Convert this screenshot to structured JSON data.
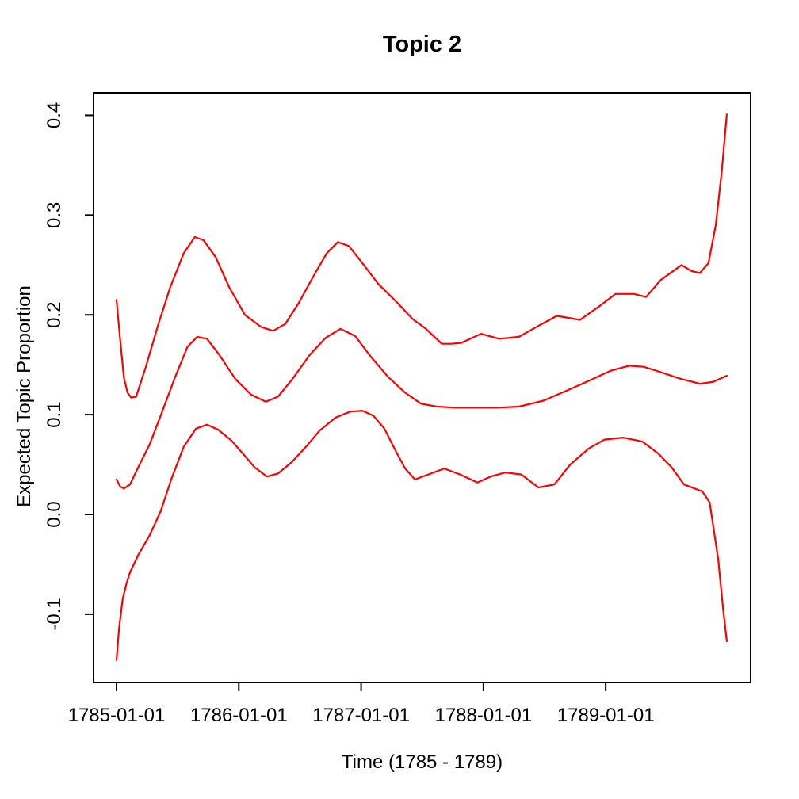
{
  "title": "Topic 2",
  "chart_data": {
    "type": "line",
    "title": "Topic 2",
    "xlabel": "Time (1785 - 1789)",
    "ylabel": "Expected Topic Proportion",
    "x_unit": "decimal_year",
    "xlim": [
      1784.812,
      1790.185
    ],
    "ylim": [
      -0.1684,
      0.4226
    ],
    "grid": false,
    "legend": "none",
    "background_color": "#FFFFFF",
    "axis_color": "#000000",
    "line_color": "#FF0000",
    "x_ticks": [
      {
        "value": 1785,
        "label": "1785-01-01"
      },
      {
        "value": 1786,
        "label": "1786-01-01"
      },
      {
        "value": 1787,
        "label": "1787-01-01"
      },
      {
        "value": 1788,
        "label": "1788-01-01"
      },
      {
        "value": 1789,
        "label": "1789-01-01"
      }
    ],
    "y_ticks": [
      {
        "value": -0.1,
        "label": "-0.1"
      },
      {
        "value": 0.0,
        "label": "0.0"
      },
      {
        "value": 0.1,
        "label": "0.1"
      },
      {
        "value": 0.2,
        "label": "0.2"
      },
      {
        "value": 0.3,
        "label": "0.3"
      },
      {
        "value": 0.4,
        "label": "0.4"
      }
    ],
    "series": [
      {
        "name": "upper_ci",
        "x": [
          1785.0,
          1785.03,
          1785.06,
          1785.09,
          1785.12,
          1785.16,
          1785.24,
          1785.34,
          1785.44,
          1785.55,
          1785.64,
          1785.71,
          1785.81,
          1785.92,
          1786.05,
          1786.18,
          1786.28,
          1786.38,
          1786.49,
          1786.62,
          1786.72,
          1786.81,
          1786.9,
          1787.01,
          1787.14,
          1787.29,
          1787.42,
          1787.53,
          1787.66,
          1787.74,
          1787.82,
          1787.98,
          1788.13,
          1788.29,
          1788.45,
          1788.6,
          1788.79,
          1788.94,
          1789.08,
          1789.23,
          1789.33,
          1789.45,
          1789.62,
          1789.7,
          1789.77,
          1789.84,
          1789.9,
          1789.95,
          1789.99
        ],
        "y": [
          0.215,
          0.175,
          0.137,
          0.122,
          0.117,
          0.118,
          0.148,
          0.19,
          0.228,
          0.262,
          0.278,
          0.275,
          0.258,
          0.228,
          0.2,
          0.188,
          0.184,
          0.191,
          0.212,
          0.241,
          0.262,
          0.273,
          0.269,
          0.252,
          0.231,
          0.213,
          0.196,
          0.186,
          0.171,
          0.171,
          0.172,
          0.181,
          0.176,
          0.178,
          0.189,
          0.199,
          0.195,
          0.208,
          0.221,
          0.221,
          0.218,
          0.235,
          0.25,
          0.244,
          0.242,
          0.252,
          0.29,
          0.345,
          0.401
        ]
      },
      {
        "name": "mean",
        "x": [
          1785.0,
          1785.03,
          1785.06,
          1785.11,
          1785.18,
          1785.27,
          1785.37,
          1785.48,
          1785.58,
          1785.66,
          1785.74,
          1785.84,
          1785.97,
          1786.1,
          1786.22,
          1786.32,
          1786.44,
          1786.58,
          1786.71,
          1786.83,
          1786.95,
          1787.08,
          1787.22,
          1787.36,
          1787.49,
          1787.62,
          1787.77,
          1787.94,
          1788.12,
          1788.29,
          1788.49,
          1788.68,
          1788.88,
          1789.04,
          1789.19,
          1789.31,
          1789.44,
          1789.61,
          1789.77,
          1789.88,
          1789.99
        ],
        "y": [
          0.035,
          0.028,
          0.026,
          0.03,
          0.048,
          0.07,
          0.102,
          0.138,
          0.168,
          0.178,
          0.176,
          0.16,
          0.136,
          0.12,
          0.113,
          0.118,
          0.136,
          0.16,
          0.177,
          0.186,
          0.179,
          0.158,
          0.138,
          0.122,
          0.111,
          0.108,
          0.107,
          0.107,
          0.107,
          0.108,
          0.114,
          0.124,
          0.135,
          0.144,
          0.149,
          0.148,
          0.143,
          0.136,
          0.131,
          0.133,
          0.139
        ]
      },
      {
        "name": "lower_ci",
        "x": [
          1785.0,
          1785.02,
          1785.05,
          1785.08,
          1785.11,
          1785.18,
          1785.27,
          1785.36,
          1785.45,
          1785.55,
          1785.65,
          1785.74,
          1785.83,
          1785.94,
          1786.04,
          1786.13,
          1786.23,
          1786.32,
          1786.43,
          1786.55,
          1786.66,
          1786.79,
          1786.91,
          1787.01,
          1787.1,
          1787.19,
          1787.29,
          1787.36,
          1787.44,
          1787.55,
          1787.68,
          1787.81,
          1787.95,
          1788.06,
          1788.18,
          1788.31,
          1788.45,
          1788.58,
          1788.71,
          1788.86,
          1788.99,
          1789.14,
          1789.3,
          1789.43,
          1789.54,
          1789.64,
          1789.79,
          1789.85,
          1789.92,
          1789.96,
          1789.99
        ],
        "y": [
          -0.146,
          -0.115,
          -0.085,
          -0.07,
          -0.058,
          -0.04,
          -0.021,
          0.003,
          0.036,
          0.068,
          0.086,
          0.09,
          0.085,
          0.074,
          0.06,
          0.047,
          0.038,
          0.041,
          0.052,
          0.068,
          0.084,
          0.097,
          0.103,
          0.104,
          0.099,
          0.086,
          0.062,
          0.046,
          0.035,
          0.04,
          0.046,
          0.04,
          0.032,
          0.038,
          0.042,
          0.04,
          0.027,
          0.03,
          0.05,
          0.066,
          0.075,
          0.077,
          0.073,
          0.061,
          0.047,
          0.03,
          0.023,
          0.012,
          -0.045,
          -0.095,
          -0.127
        ]
      }
    ]
  }
}
